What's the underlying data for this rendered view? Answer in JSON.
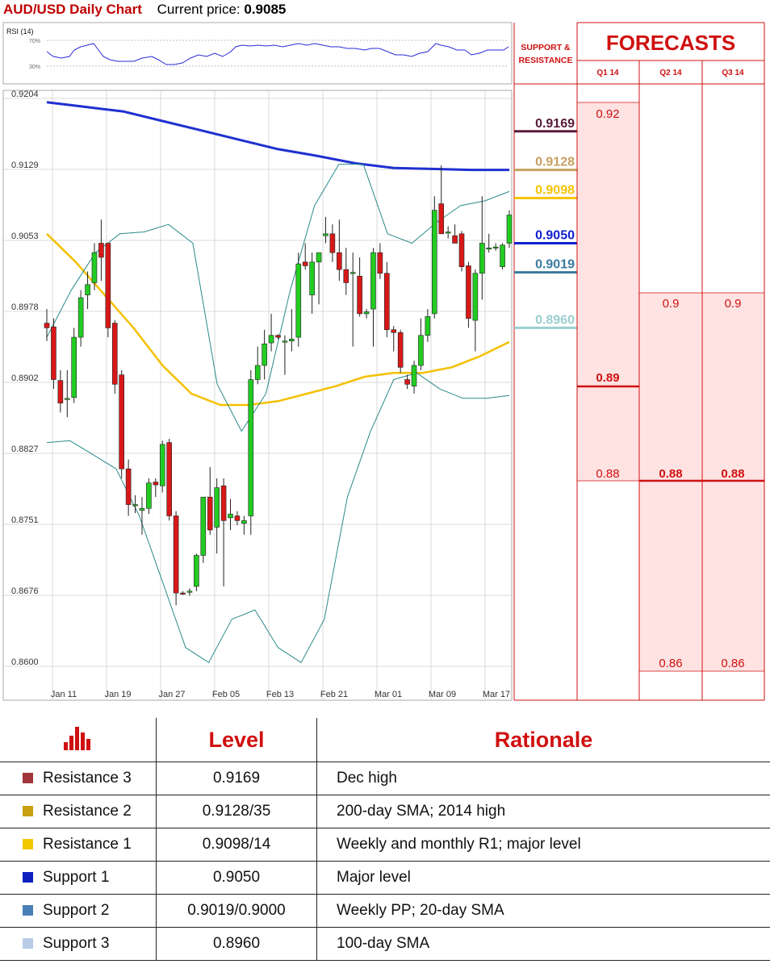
{
  "header": {
    "title": "AUD/USD Daily Chart",
    "price_label": "Current price:",
    "price_value": "0.9085"
  },
  "rsi": {
    "label": "RSI (14)",
    "ticks": [
      "70%",
      "30%"
    ]
  },
  "forecasts": {
    "title": "FORECASTS",
    "sr_label_1": "SUPPORT &",
    "sr_label_2": "RESISTANCE",
    "quarters": [
      "Q1 14",
      "Q2 14",
      "Q3 14"
    ],
    "q1": {
      "high": "0.92",
      "mid": "0.89",
      "low": "0.88"
    },
    "q2": {
      "high": "0.9",
      "mid": "0.88",
      "low": "0.86"
    },
    "q3": {
      "high": "0.9",
      "mid": "0.88",
      "low": "0.86"
    }
  },
  "colors": {
    "r3": "#5a1a38",
    "r2": "#c8a060",
    "r1": "#f5c400",
    "s1": "#1020d0",
    "s2": "#3a7aa0",
    "s3": "#9ccfd0",
    "sma200": "#2030d0",
    "sma100": "#f5c000",
    "bollinger": "#2a8a8a",
    "up": "#22cc22",
    "down": "#d81818",
    "accent": "#d01010"
  },
  "chart_data": {
    "type": "candlestick",
    "title": "AUD/USD Daily Chart",
    "ylim": [
      0.86,
      0.9204
    ],
    "y_ticks": [
      "0.9204",
      "0.9129",
      "0.9053",
      "0.8978",
      "0.8902",
      "0.8827",
      "0.8751",
      "0.8676",
      "0.8600"
    ],
    "x_ticks": [
      "Jan 11",
      "Jan 19",
      "Jan 27",
      "Feb 05",
      "Feb 13",
      "Feb 21",
      "Mar 01",
      "Mar 09",
      "Mar 17"
    ],
    "grid": true,
    "levels": [
      {
        "name": "Resistance 3",
        "value": 0.9169,
        "label": "0.9169",
        "color_key": "r3"
      },
      {
        "name": "Resistance 2",
        "value": 0.9128,
        "label": "0.9128",
        "color_key": "r2"
      },
      {
        "name": "Resistance 1",
        "value": 0.9098,
        "label": "0.9098",
        "color_key": "r1"
      },
      {
        "name": "Support 1",
        "value": 0.905,
        "label": "0.9050",
        "color_key": "s1"
      },
      {
        "name": "Support 2",
        "value": 0.9019,
        "label": "0.9019",
        "color_key": "s2"
      },
      {
        "name": "Support 3",
        "value": 0.896,
        "label": "0.8960",
        "color_key": "s3"
      }
    ],
    "candles": [
      [
        0.8965,
        0.898,
        0.8946,
        0.896
      ],
      [
        0.8961,
        0.897,
        0.8895,
        0.8905
      ],
      [
        0.8904,
        0.8915,
        0.887,
        0.888
      ],
      [
        0.8884,
        0.8915,
        0.8865,
        0.8885
      ],
      [
        0.8886,
        0.896,
        0.888,
        0.895
      ],
      [
        0.895,
        0.9,
        0.894,
        0.8992
      ],
      [
        0.8995,
        0.902,
        0.898,
        0.9006
      ],
      [
        0.9008,
        0.905,
        0.9,
        0.904
      ],
      [
        0.905,
        0.9075,
        0.901,
        0.9035
      ],
      [
        0.905,
        0.905,
        0.895,
        0.896
      ],
      [
        0.8965,
        0.8968,
        0.889,
        0.89
      ],
      [
        0.891,
        0.8915,
        0.88,
        0.881
      ],
      [
        0.881,
        0.882,
        0.876,
        0.8772
      ],
      [
        0.8772,
        0.8782,
        0.8763,
        0.8772
      ],
      [
        0.8766,
        0.878,
        0.874,
        0.8768
      ],
      [
        0.8768,
        0.88,
        0.8762,
        0.8795
      ],
      [
        0.8796,
        0.88,
        0.878,
        0.8793
      ],
      [
        0.8792,
        0.884,
        0.8785,
        0.8836
      ],
      [
        0.8838,
        0.8842,
        0.8755,
        0.876
      ],
      [
        0.876,
        0.8765,
        0.8665,
        0.8678
      ],
      [
        0.8678,
        0.868,
        0.8676,
        0.8677
      ],
      [
        0.868,
        0.8683,
        0.8675,
        0.868
      ],
      [
        0.8685,
        0.872,
        0.868,
        0.8718
      ],
      [
        0.8718,
        0.878,
        0.871,
        0.878
      ],
      [
        0.878,
        0.8812,
        0.874,
        0.8745
      ],
      [
        0.8748,
        0.88,
        0.872,
        0.879
      ],
      [
        0.8792,
        0.88,
        0.8685,
        0.8755
      ],
      [
        0.8758,
        0.8778,
        0.8745,
        0.8762
      ],
      [
        0.876,
        0.8765,
        0.875,
        0.8755
      ],
      [
        0.8752,
        0.876,
        0.874,
        0.8755
      ],
      [
        0.876,
        0.8915,
        0.874,
        0.8905
      ],
      [
        0.8905,
        0.894,
        0.89,
        0.892
      ],
      [
        0.892,
        0.8958,
        0.8905,
        0.8943
      ],
      [
        0.8944,
        0.8975,
        0.8935,
        0.8952
      ],
      [
        0.8952,
        0.8953,
        0.8948,
        0.895
      ],
      [
        0.8946,
        0.8952,
        0.891,
        0.8946
      ],
      [
        0.8946,
        0.898,
        0.8935,
        0.8948
      ],
      [
        0.895,
        0.904,
        0.894,
        0.9028
      ],
      [
        0.903,
        0.905,
        0.9022,
        0.9026
      ],
      [
        0.8995,
        0.904,
        0.8975,
        0.903
      ],
      [
        0.903,
        0.904,
        0.8985,
        0.904
      ],
      [
        0.9058,
        0.9078,
        0.905,
        0.906
      ],
      [
        0.906,
        0.907,
        0.903,
        0.904
      ],
      [
        0.904,
        0.9075,
        0.901,
        0.9022
      ],
      [
        0.9022,
        0.9045,
        0.8995,
        0.9008
      ],
      [
        0.9018,
        0.904,
        0.894,
        0.9019
      ],
      [
        0.9015,
        0.9035,
        0.8972,
        0.8975
      ],
      [
        0.8975,
        0.898,
        0.897,
        0.8977
      ],
      [
        0.898,
        0.9045,
        0.894,
        0.904
      ],
      [
        0.904,
        0.905,
        0.9012,
        0.9018
      ],
      [
        0.9018,
        0.903,
        0.895,
        0.8958
      ],
      [
        0.8958,
        0.8962,
        0.8935,
        0.8955
      ],
      [
        0.8955,
        0.8958,
        0.8912,
        0.8918
      ],
      [
        0.8905,
        0.891,
        0.8895,
        0.89
      ],
      [
        0.8898,
        0.8925,
        0.889,
        0.892
      ],
      [
        0.892,
        0.897,
        0.8915,
        0.8952
      ],
      [
        0.8952,
        0.898,
        0.8945,
        0.8972
      ],
      [
        0.8975,
        0.91,
        0.897,
        0.9085
      ],
      [
        0.9092,
        0.9133,
        0.906,
        0.906
      ],
      [
        0.9062,
        0.9068,
        0.9055,
        0.9062
      ],
      [
        0.9058,
        0.907,
        0.905,
        0.905
      ],
      [
        0.906,
        0.9063,
        0.902,
        0.9025
      ],
      [
        0.9026,
        0.903,
        0.896,
        0.897
      ],
      [
        0.8968,
        0.9022,
        0.8935,
        0.9018
      ],
      [
        0.9018,
        0.91,
        0.899,
        0.905
      ],
      [
        0.9045,
        0.906,
        0.904,
        0.9045
      ],
      [
        0.9046,
        0.905,
        0.9042,
        0.9046
      ],
      [
        0.9025,
        0.905,
        0.9022,
        0.9048
      ],
      [
        0.905,
        0.9085,
        0.9045,
        0.908
      ]
    ],
    "series": [
      {
        "values": [
          0.92,
          0.9195,
          0.919,
          0.918,
          0.917,
          0.916,
          0.915,
          0.9143,
          0.9135,
          0.913,
          0.9129,
          0.9128,
          0.9128
        ]
      },
      {
        "values": [
          0.906,
          0.903,
          0.8995,
          0.896,
          0.892,
          0.889,
          0.8878,
          0.8878,
          0.8882,
          0.889,
          0.8898,
          0.8908,
          0.8912,
          0.8912,
          0.8918,
          0.893,
          0.8945
        ]
      },
      {
        "values": [
          0.8838,
          0.884,
          0.8825,
          0.881,
          0.876,
          0.869,
          0.862,
          0.8604,
          0.865,
          0.866,
          0.862,
          0.8604,
          0.865,
          0.878,
          0.885,
          0.8905,
          0.8912,
          0.8895,
          0.8885,
          0.8885,
          0.8888
        ]
      },
      {
        "values": [
          0.895,
          0.9,
          0.904,
          0.906,
          0.9062,
          0.907,
          0.905,
          0.89,
          0.885,
          0.889,
          0.9,
          0.909,
          0.9134,
          0.9134,
          0.906,
          0.905,
          0.9072,
          0.909,
          0.9095,
          0.9105
        ]
      }
    ]
  },
  "table": {
    "headers": [
      "Level",
      "Rationale"
    ],
    "rows": [
      {
        "name": "Resistance 3",
        "level": "0.9169",
        "rationale": "Dec high",
        "color": "#a0353a"
      },
      {
        "name": "Resistance 2",
        "level": "0.9128/35",
        "rationale": "200-day SMA; 2014 high",
        "color": "#c8a010"
      },
      {
        "name": "Resistance 1",
        "level": "0.9098/14",
        "rationale": "Weekly and monthly R1; major level",
        "color": "#f0c800"
      },
      {
        "name": "Support 1",
        "level": "0.9050",
        "rationale": "Major level",
        "color": "#1020c0"
      },
      {
        "name": "Support 2",
        "level": "0.9019/0.9000",
        "rationale": "Weekly PP; 20-day SMA",
        "color": "#4a80b8"
      },
      {
        "name": "Support 3",
        "level": "0.8960",
        "rationale": "100-day SMA",
        "color": "#b8cce8"
      }
    ]
  }
}
